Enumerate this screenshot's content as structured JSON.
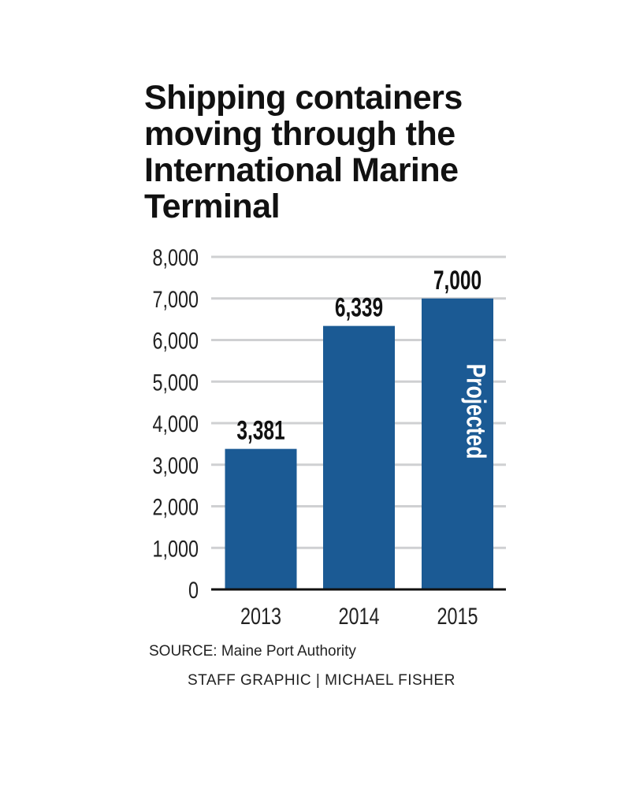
{
  "chart_data": {
    "type": "bar",
    "title": "Shipping containers moving through the International Marine Terminal",
    "categories": [
      "2013",
      "2014",
      "2015"
    ],
    "values": [
      3381,
      6339,
      7000
    ],
    "data_labels": [
      "3,381",
      "6,339",
      "7,000"
    ],
    "annotations": [
      {
        "category": "2015",
        "text": "Projected"
      }
    ],
    "yticks": [
      0,
      1000,
      2000,
      3000,
      4000,
      5000,
      6000,
      7000,
      8000
    ],
    "ytick_labels": [
      "0",
      "1,000",
      "2,000",
      "3,000",
      "4,000",
      "5,000",
      "6,000",
      "7,000",
      "8,000"
    ],
    "ylim": [
      0,
      8000
    ],
    "xlabel": "",
    "ylabel": "",
    "grid": true,
    "bar_color": "#1b5a94",
    "grid_color": "#cfd0d2"
  },
  "source": "SOURCE: Maine Port Authority",
  "credit": "STAFF GRAPHIC | MICHAEL FISHER"
}
